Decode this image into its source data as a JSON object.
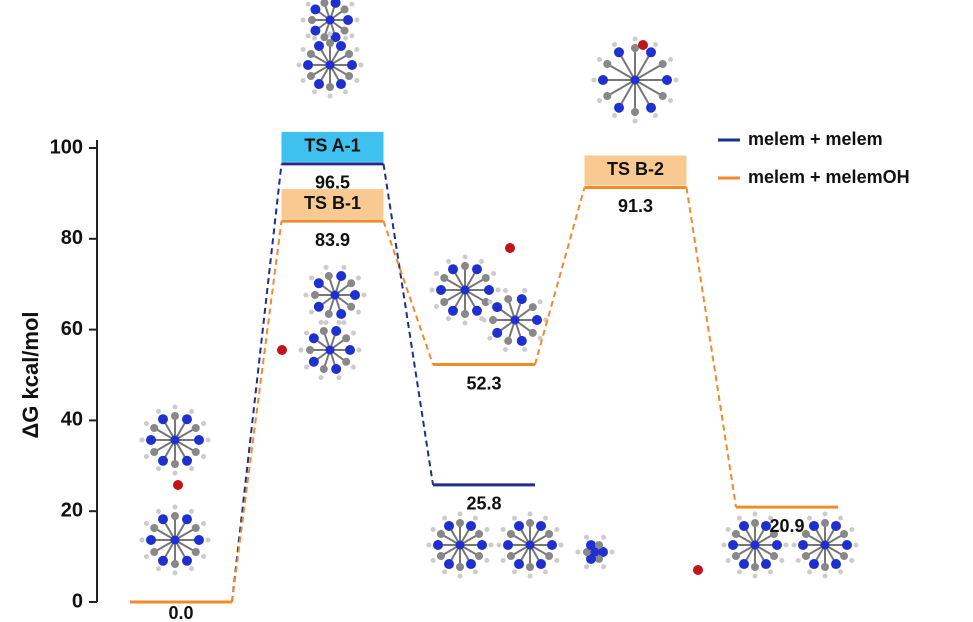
{
  "chart_data": {
    "type": "energy-level",
    "y_label": "ΔG  kcal/mol",
    "ylim": [
      0,
      100
    ],
    "yticks": [
      0,
      20,
      40,
      60,
      80,
      100
    ],
    "series": [
      {
        "name": "melem + melem",
        "color": "#1b2f8f",
        "values": [
          0,
          96.5,
          25.8,
          null,
          null
        ],
        "value_labels": [
          "0.0",
          "96.5",
          "25.8",
          null,
          null
        ],
        "state_labels": [
          null,
          "TS A-1",
          null,
          null,
          null
        ],
        "label_color": "#3ec1ef"
      },
      {
        "name": "melem + melemOH",
        "color": "#f28a2a",
        "values": [
          0,
          83.9,
          52.3,
          91.3,
          20.9
        ],
        "value_labels": [
          null,
          "83.9",
          "52.3",
          "91.3",
          "20.9"
        ],
        "state_labels": [
          null,
          "TS B-1",
          null,
          "TS B-2",
          null
        ],
        "label_color": "#f9c992"
      }
    ]
  }
}
